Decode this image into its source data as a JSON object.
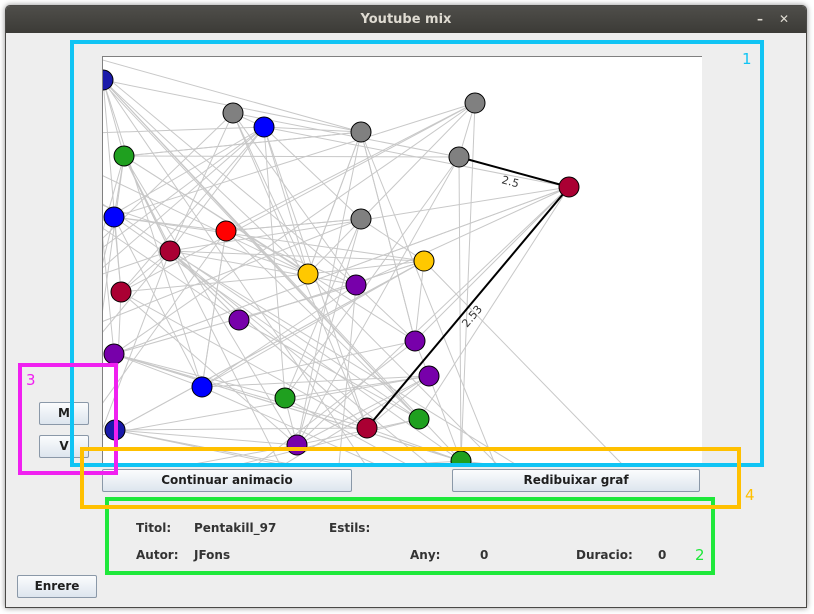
{
  "window": {
    "title": "Youtube mix"
  },
  "buttons": {
    "m": "M",
    "v": "V",
    "continuar": "Continuar animacio",
    "redibuixar": "Redibuixar graf",
    "enrere": "Enrere"
  },
  "info": {
    "titol_label": "Titol:",
    "titol_value": "Pentakill_97",
    "estils_label": "Estils:",
    "estils_value": "",
    "autor_label": "Autor:",
    "autor_value": "JFons",
    "any_label": "Any:",
    "any_value": "0",
    "duracio_label": "Duracio:",
    "duracio_value": "0"
  },
  "graph": {
    "edge_labels": [
      "2.5",
      "2.53"
    ],
    "colors": {
      "gray": "#808080",
      "blue": "#0000ff",
      "green": "#1fa01f",
      "red": "#ff0000",
      "crimson": "#aa0033",
      "purple": "#7700aa",
      "yellow": "#ffc800",
      "navy": "#1a1aaa",
      "edge": "#c8c8c8",
      "highlight": "#000000"
    }
  },
  "annotations": [
    {
      "number": "1",
      "color": "#10c4f4"
    },
    {
      "number": "2",
      "color": "#1ee83a"
    },
    {
      "number": "3",
      "color": "#f020f0"
    },
    {
      "number": "4",
      "color": "#ffc000"
    }
  ]
}
